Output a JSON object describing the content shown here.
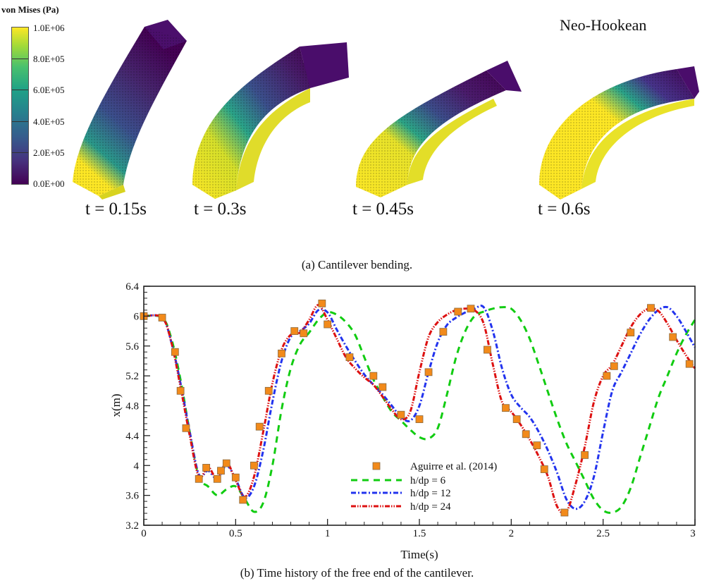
{
  "figure": {
    "colorbar": {
      "title": "von Mises (Pa)",
      "labels": [
        "1.0E+06",
        "8.0E+05",
        "6.0E+05",
        "4.0E+05",
        "2.0E+05",
        "0.0E+00"
      ],
      "colormap": [
        "#440154",
        "#46327e",
        "#365c8d",
        "#277f8e",
        "#1fa187",
        "#4ac16d",
        "#a0da39",
        "#fde725"
      ]
    },
    "model_title": "Neo-Hookean",
    "snapshots": [
      {
        "label": "t = 0.15s"
      },
      {
        "label": "t = 0.3s"
      },
      {
        "label": "t = 0.45s"
      },
      {
        "label": "t = 0.6s"
      }
    ],
    "caption_a": "(a) Cantilever bending.",
    "caption_b": "(b) Time history of the free end of the cantilever."
  },
  "chart_data": {
    "type": "line",
    "title": "",
    "xlabel": "Time(s)",
    "ylabel": "x(m)",
    "xlim": [
      0,
      3
    ],
    "ylim": [
      3.2,
      6.4
    ],
    "xticks": [
      0,
      0.5,
      1,
      1.5,
      2,
      2.5,
      3
    ],
    "xtick_labels": [
      "0",
      "0.5",
      "1",
      "1.5",
      "2",
      "2.5",
      "3"
    ],
    "yticks": [
      3.2,
      3.6,
      4,
      4.4,
      4.8,
      5.2,
      5.6,
      6,
      6.4
    ],
    "ytick_labels": [
      "3.2",
      "3.6",
      "4",
      "4.4",
      "4.8",
      "5.2",
      "5.6",
      "6",
      "6.4"
    ],
    "grid": false,
    "legend_position": "bottom-center",
    "series": [
      {
        "name": "Aguirre et al. (2014)",
        "kind": "markers",
        "color": "#f28a1a",
        "x": [
          0.0,
          0.1,
          0.17,
          0.2,
          0.23,
          0.3,
          0.34,
          0.4,
          0.42,
          0.45,
          0.5,
          0.54,
          0.6,
          0.63,
          0.68,
          0.75,
          0.82,
          0.87,
          0.97,
          1.0,
          1.12,
          1.25,
          1.3,
          1.4,
          1.5,
          1.55,
          1.63,
          1.71,
          1.78,
          1.87,
          1.97,
          2.03,
          2.08,
          2.14,
          2.18,
          2.29,
          2.4,
          2.52,
          2.56,
          2.65,
          2.76,
          2.88,
          2.97
        ],
        "y": [
          6.0,
          5.98,
          5.52,
          5.0,
          4.5,
          3.82,
          3.97,
          3.82,
          3.93,
          4.03,
          3.84,
          3.54,
          4.0,
          4.52,
          5.0,
          5.5,
          5.8,
          5.77,
          6.17,
          5.89,
          5.45,
          5.2,
          5.05,
          4.68,
          4.62,
          5.25,
          5.79,
          6.06,
          6.1,
          5.55,
          4.77,
          4.62,
          4.42,
          4.27,
          3.95,
          3.37,
          4.14,
          5.2,
          5.33,
          5.78,
          6.11,
          5.72,
          5.36
        ]
      },
      {
        "name": "h/dp = 6",
        "kind": "dashed",
        "color": "#11cc11",
        "x": [
          0.0,
          0.1,
          0.15,
          0.2,
          0.25,
          0.3,
          0.35,
          0.4,
          0.45,
          0.5,
          0.55,
          0.6,
          0.65,
          0.7,
          0.75,
          0.8,
          0.85,
          0.9,
          0.95,
          1.0,
          1.05,
          1.1,
          1.15,
          1.2,
          1.25,
          1.3,
          1.35,
          1.4,
          1.45,
          1.5,
          1.55,
          1.6,
          1.65,
          1.7,
          1.75,
          1.8,
          1.85,
          1.9,
          1.95,
          2.0,
          2.05,
          2.1,
          2.15,
          2.2,
          2.25,
          2.3,
          2.35,
          2.4,
          2.45,
          2.5,
          2.55,
          2.6,
          2.65,
          2.7,
          2.75,
          2.8,
          2.85,
          2.9,
          2.95,
          3.0
        ],
        "y": [
          6.0,
          5.98,
          5.7,
          5.15,
          4.45,
          3.85,
          3.72,
          3.6,
          3.68,
          3.72,
          3.55,
          3.38,
          3.5,
          4.0,
          4.75,
          5.3,
          5.62,
          5.78,
          5.95,
          6.05,
          6.02,
          5.92,
          5.75,
          5.45,
          5.15,
          4.92,
          4.72,
          4.6,
          4.48,
          4.38,
          4.36,
          4.5,
          4.95,
          5.45,
          5.8,
          6.0,
          6.06,
          6.1,
          6.12,
          6.1,
          5.95,
          5.7,
          5.35,
          4.98,
          4.62,
          4.3,
          4.05,
          3.8,
          3.55,
          3.4,
          3.37,
          3.45,
          3.7,
          4.1,
          4.5,
          4.9,
          5.2,
          5.5,
          5.75,
          5.95
        ]
      },
      {
        "name": "h/dp = 12",
        "kind": "dashdot",
        "color": "#2233ee",
        "x": [
          0.0,
          0.1,
          0.15,
          0.2,
          0.25,
          0.3,
          0.35,
          0.4,
          0.45,
          0.5,
          0.55,
          0.6,
          0.65,
          0.7,
          0.75,
          0.8,
          0.85,
          0.9,
          0.95,
          1.0,
          1.05,
          1.1,
          1.15,
          1.2,
          1.25,
          1.3,
          1.35,
          1.4,
          1.45,
          1.5,
          1.55,
          1.6,
          1.65,
          1.7,
          1.75,
          1.8,
          1.85,
          1.9,
          1.95,
          2.0,
          2.05,
          2.1,
          2.15,
          2.2,
          2.25,
          2.3,
          2.35,
          2.4,
          2.45,
          2.5,
          2.55,
          2.6,
          2.65,
          2.7,
          2.75,
          2.8,
          2.85,
          2.9,
          2.95,
          3.0
        ],
        "y": [
          6.0,
          5.98,
          5.65,
          5.1,
          4.45,
          3.88,
          3.93,
          3.82,
          4.0,
          3.82,
          3.57,
          3.72,
          4.2,
          4.85,
          5.4,
          5.72,
          5.8,
          5.9,
          6.08,
          6.05,
          5.82,
          5.6,
          5.4,
          5.22,
          5.08,
          4.95,
          4.8,
          4.65,
          4.6,
          4.8,
          5.25,
          5.65,
          5.88,
          5.98,
          6.05,
          6.1,
          6.12,
          5.8,
          5.3,
          4.95,
          4.78,
          4.65,
          4.45,
          4.2,
          3.9,
          3.55,
          3.42,
          3.52,
          3.85,
          4.45,
          5.0,
          5.25,
          5.5,
          5.75,
          5.95,
          6.08,
          6.12,
          6.0,
          5.8,
          5.58
        ]
      },
      {
        "name": "h/dp = 24",
        "kind": "dashdotdot",
        "color": "#dd1111",
        "x": [
          0.0,
          0.1,
          0.15,
          0.2,
          0.25,
          0.3,
          0.35,
          0.4,
          0.45,
          0.5,
          0.55,
          0.6,
          0.65,
          0.7,
          0.75,
          0.8,
          0.85,
          0.9,
          0.95,
          1.0,
          1.05,
          1.1,
          1.15,
          1.2,
          1.25,
          1.3,
          1.35,
          1.4,
          1.45,
          1.5,
          1.55,
          1.6,
          1.65,
          1.7,
          1.75,
          1.8,
          1.85,
          1.9,
          1.95,
          2.0,
          2.05,
          2.1,
          2.15,
          2.2,
          2.25,
          2.3,
          2.35,
          2.4,
          2.45,
          2.5,
          2.55,
          2.6,
          2.65,
          2.7,
          2.75,
          2.8,
          2.85,
          2.9,
          2.95,
          3.0
        ],
        "y": [
          6.0,
          5.98,
          5.65,
          5.05,
          4.4,
          3.85,
          3.98,
          3.82,
          4.04,
          3.8,
          3.58,
          3.85,
          4.45,
          5.1,
          5.55,
          5.75,
          5.78,
          5.95,
          6.15,
          5.95,
          5.7,
          5.45,
          5.3,
          5.18,
          5.08,
          4.92,
          4.75,
          4.62,
          4.72,
          5.25,
          5.72,
          5.92,
          6.02,
          6.08,
          6.1,
          6.08,
          5.9,
          5.35,
          4.85,
          4.72,
          4.55,
          4.35,
          4.12,
          3.85,
          3.45,
          3.38,
          3.75,
          4.25,
          4.85,
          5.2,
          5.35,
          5.6,
          5.85,
          6.02,
          6.1,
          6.07,
          5.9,
          5.68,
          5.48,
          5.3
        ]
      }
    ]
  }
}
